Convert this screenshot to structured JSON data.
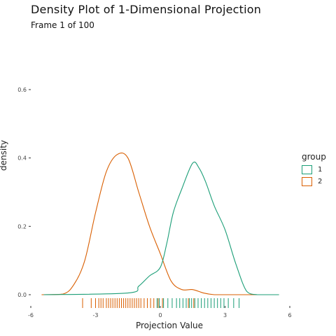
{
  "chart_data": {
    "type": "area",
    "title": "Density Plot of 1-Dimensional Projection",
    "subtitle": "Frame 1 of 100",
    "xlabel": "Projection Value",
    "ylabel": "density",
    "xlim": [
      -6,
      6
    ],
    "ylim": [
      0,
      0.6
    ],
    "x_ticks": [
      -6,
      -3,
      0,
      3,
      6
    ],
    "x_tick_labels": [
      "-6",
      "-3",
      "0",
      "3",
      "6"
    ],
    "y_ticks": [
      0.0,
      0.2,
      0.4,
      0.6
    ],
    "y_tick_labels": [
      "0.0",
      "0.2",
      "0.4",
      "0.6"
    ],
    "grid": false,
    "legend": {
      "title": "group",
      "position": "right"
    },
    "series": [
      {
        "name": "1",
        "color": "#1b9e77",
        "x": [
          -5.4,
          -1.5,
          -1.0,
          -0.5,
          0.0,
          0.3,
          0.6,
          1.0,
          1.5,
          1.8,
          2.1,
          2.5,
          3.0,
          3.5,
          4.0,
          4.5,
          5.5
        ],
        "density": [
          0.0,
          0.005,
          0.025,
          0.055,
          0.08,
          0.15,
          0.24,
          0.31,
          0.385,
          0.37,
          0.33,
          0.26,
          0.19,
          0.09,
          0.01,
          0.0,
          0.0
        ],
        "rug": [
          -0.15,
          -0.05,
          0.15,
          0.35,
          0.55,
          0.75,
          0.9,
          1.05,
          1.2,
          1.35,
          1.45,
          1.6,
          1.75,
          1.9,
          2.05,
          2.2,
          2.35,
          2.5,
          2.65,
          2.8,
          2.95,
          3.15,
          3.4,
          3.65
        ]
      },
      {
        "name": "2",
        "color": "#d95f02",
        "x": [
          -5.5,
          -4.5,
          -4.0,
          -3.5,
          -3.0,
          -2.5,
          -2.0,
          -1.5,
          -1.0,
          -0.5,
          0.0,
          0.5,
          1.0,
          1.5,
          2.0,
          2.5,
          3.0,
          4.0,
          5.5
        ],
        "density": [
          0.0,
          0.002,
          0.03,
          0.1,
          0.24,
          0.36,
          0.41,
          0.4,
          0.3,
          0.2,
          0.12,
          0.04,
          0.015,
          0.015,
          0.005,
          0.0,
          0.0,
          0.0,
          0.0
        ],
        "rug": [
          -3.6,
          -3.2,
          -3.0,
          -2.85,
          -2.75,
          -2.65,
          -2.5,
          -2.4,
          -2.3,
          -2.2,
          -2.1,
          -2.0,
          -1.9,
          -1.8,
          -1.7,
          -1.6,
          -1.5,
          -1.4,
          -1.3,
          -1.2,
          -1.1,
          -1.0,
          -0.9,
          -0.75,
          -0.6,
          -0.45,
          -0.3,
          -0.1,
          0.1,
          1.3,
          1.55
        ]
      }
    ]
  }
}
